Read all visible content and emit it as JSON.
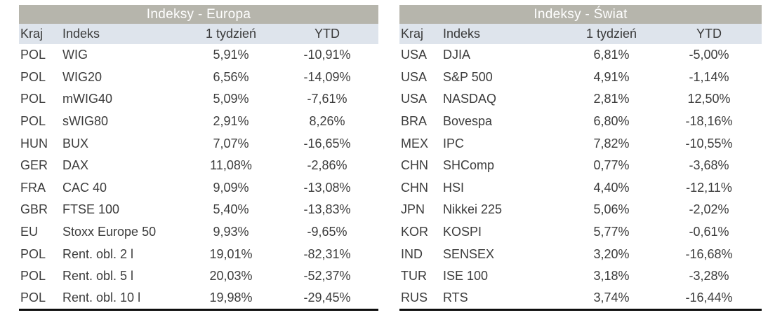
{
  "colors": {
    "title_bar_bg": "#b6b5ac",
    "title_text": "#ffffff",
    "header_row_bg": "#dee4ec",
    "body_text": "#3c3c3c",
    "bottom_border": "#0d0d0d",
    "page_bg": "#ffffff"
  },
  "tables": [
    {
      "title": "Indeksy - Europa",
      "columns": [
        "Kraj",
        "Indeks",
        "1 tydzień",
        "YTD"
      ],
      "rows": [
        [
          "POL",
          "WIG",
          "5,91%",
          "-10,91%"
        ],
        [
          "POL",
          "WIG20",
          "6,56%",
          "-14,09%"
        ],
        [
          "POL",
          "mWIG40",
          "5,09%",
          "-7,61%"
        ],
        [
          "POL",
          "sWIG80",
          "2,91%",
          "8,26%"
        ],
        [
          "HUN",
          "BUX",
          "7,07%",
          "-16,65%"
        ],
        [
          "GER",
          "DAX",
          "11,08%",
          "-2,86%"
        ],
        [
          "FRA",
          "CAC 40",
          "9,09%",
          "-13,08%"
        ],
        [
          "GBR",
          "FTSE 100",
          "5,40%",
          "-13,83%"
        ],
        [
          "EU",
          "Stoxx Europe 50",
          "9,93%",
          "-9,65%"
        ],
        [
          "POL",
          "Rent. obl. 2 l",
          "19,01%",
          "-82,31%"
        ],
        [
          "POL",
          "Rent. obl. 5 l",
          "20,03%",
          "-52,37%"
        ],
        [
          "POL",
          "Rent. obl. 10 l",
          "19,98%",
          "-29,45%"
        ]
      ]
    },
    {
      "title": "Indeksy - Świat",
      "columns": [
        "Kraj",
        "Indeks",
        "1 tydzień",
        "YTD"
      ],
      "rows": [
        [
          "USA",
          "DJIA",
          "6,81%",
          "-5,00%"
        ],
        [
          "USA",
          "S&P 500",
          "4,91%",
          "-1,14%"
        ],
        [
          "USA",
          "NASDAQ",
          "2,81%",
          "12,50%"
        ],
        [
          "BRA",
          "Bovespa",
          "6,80%",
          "-18,16%"
        ],
        [
          "MEX",
          "IPC",
          "7,82%",
          "-10,55%"
        ],
        [
          "CHN",
          "SHComp",
          "0,77%",
          "-3,68%"
        ],
        [
          "CHN",
          "HSI",
          "4,40%",
          "-12,11%"
        ],
        [
          "JPN",
          "Nikkei 225",
          "5,06%",
          "-2,02%"
        ],
        [
          "KOR",
          "KOSPI",
          "5,77%",
          "-0,61%"
        ],
        [
          "IND",
          "SENSEX",
          "3,20%",
          "-16,68%"
        ],
        [
          "TUR",
          "ISE 100",
          "3,18%",
          "-3,28%"
        ],
        [
          "RUS",
          "RTS",
          "3,74%",
          "-16,44%"
        ]
      ]
    }
  ]
}
